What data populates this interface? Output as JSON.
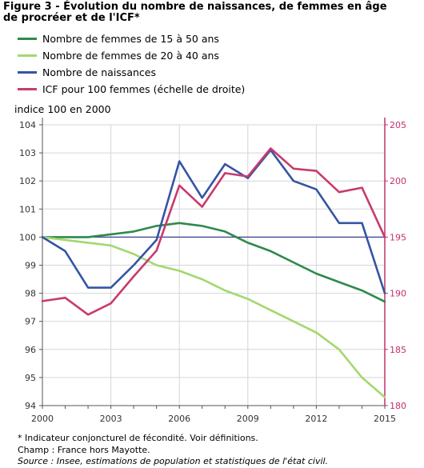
{
  "chart_data": {
    "type": "line",
    "title": "Figure 3 - Évolution du nombre de naissances, de femmes en âge de procréer et de l'ICF*",
    "ylabel": "indice 100 en 2000",
    "x": [
      2000,
      2001,
      2002,
      2003,
      2004,
      2005,
      2006,
      2007,
      2008,
      2009,
      2010,
      2011,
      2012,
      2013,
      2014,
      2015
    ],
    "x_tick_labels": [
      "2000",
      "2003",
      "2006",
      "2009",
      "2012",
      "2015"
    ],
    "ylim": [
      94,
      104
    ],
    "y_ticks": [
      94,
      95,
      96,
      97,
      98,
      99,
      100,
      101,
      102,
      103,
      104
    ],
    "y2lim": [
      180,
      205
    ],
    "y2_ticks": [
      180,
      185,
      190,
      195,
      200,
      205
    ],
    "y2_axis_color": "#c2306b",
    "baseline_value": 100,
    "baseline_color": "#3a3f8c",
    "grid": true,
    "legend": "top-left",
    "series": [
      {
        "name": "Nombre de femmes de 15 à 50 ans",
        "color": "#2f8a4c",
        "secondary_axis": false,
        "values": [
          100.0,
          100.0,
          100.0,
          100.1,
          100.2,
          100.4,
          100.5,
          100.4,
          100.2,
          99.8,
          99.5,
          99.1,
          98.7,
          98.4,
          98.1,
          97.7
        ]
      },
      {
        "name": "Nombre de femmes de 20 à 40 ans",
        "color": "#a3d86f",
        "secondary_axis": false,
        "values": [
          100.0,
          99.9,
          99.8,
          99.7,
          99.4,
          99.0,
          98.8,
          98.5,
          98.1,
          97.8,
          97.4,
          97.0,
          96.6,
          96.0,
          95.0,
          94.3
        ]
      },
      {
        "name": "Nombre de naissances",
        "color": "#3455a4",
        "secondary_axis": false,
        "values": [
          100.0,
          99.5,
          98.2,
          98.2,
          99.0,
          99.9,
          102.7,
          101.4,
          102.6,
          102.1,
          103.1,
          102.0,
          101.7,
          100.5,
          100.5,
          98.0
        ]
      },
      {
        "name": "ICF pour 100 femmes (échelle de droite)",
        "color": "#c93a6d",
        "secondary_axis": true,
        "values": [
          189.3,
          189.6,
          188.1,
          189.1,
          191.5,
          193.8,
          199.6,
          197.7,
          200.7,
          200.4,
          202.9,
          201.1,
          200.9,
          199.0,
          199.4,
          195.0
        ]
      }
    ]
  },
  "notes": {
    "footnote": "* Indicateur conjoncturel de fécondité. Voir définitions.",
    "scope": "Champ : France hors Mayotte.",
    "source": "Source : Insee, estimations de population et statistiques de l'état civil."
  }
}
